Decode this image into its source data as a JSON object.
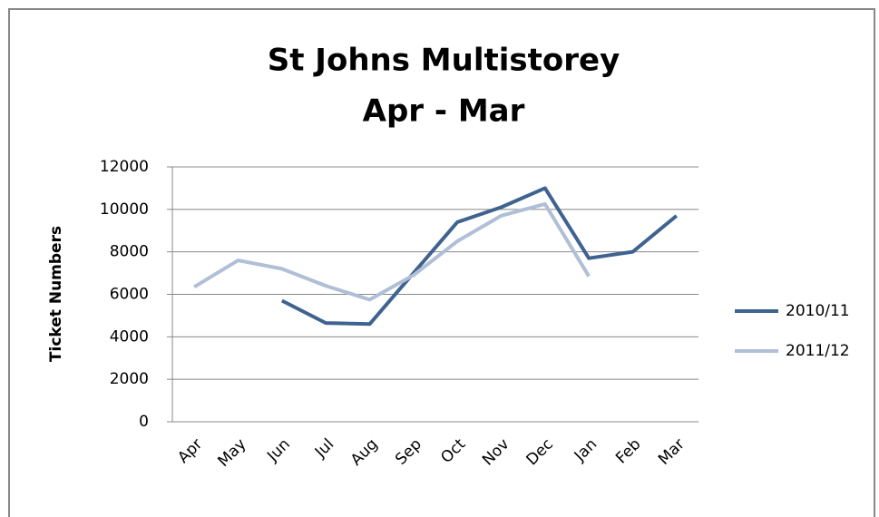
{
  "chart_data": {
    "type": "line",
    "title": "St Johns Multistorey",
    "subtitle": "Apr - Mar",
    "y_label": "Ticket Numbers",
    "categories": [
      "Apr",
      "May",
      "Jun",
      "Jul",
      "Aug",
      "Sep",
      "Oct",
      "Nov",
      "Dec",
      "Jan",
      "Feb",
      "Mar"
    ],
    "series": [
      {
        "name": "2010/11",
        "color": "#3f6390",
        "values": [
          null,
          null,
          5700,
          4650,
          4600,
          7000,
          9400,
          10100,
          11000,
          7700,
          8000,
          9700
        ]
      },
      {
        "name": "2011/12",
        "color": "#b0bfd6",
        "values": [
          6350,
          7600,
          7200,
          6400,
          5750,
          6900,
          8500,
          9700,
          10250,
          6850,
          null,
          null
        ]
      }
    ],
    "ylim": [
      0,
      12000
    ],
    "yticks": [
      0,
      2000,
      4000,
      6000,
      8000,
      10000,
      12000
    ],
    "grid": true,
    "legend": "right"
  }
}
